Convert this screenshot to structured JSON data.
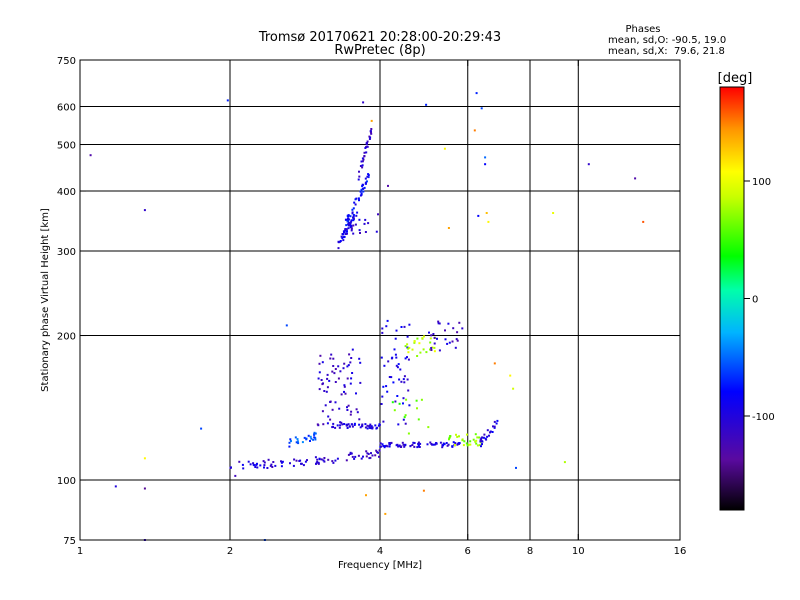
{
  "chart_data": {
    "type": "scatter",
    "title": "Tromsø 20170621 20:28:00-20:29:43",
    "subtitle": "RwPretec (8p)",
    "xlabel": "Frequency [MHz]",
    "ylabel": "Stationary phase Virtual Height [km]",
    "x_scale": "log",
    "y_scale": "log",
    "xlim": [
      1,
      16
    ],
    "ylim": [
      75,
      750
    ],
    "x_ticks": [
      {
        "value": 1,
        "label": "1"
      },
      {
        "value": 2,
        "label": "2"
      },
      {
        "value": 4,
        "label": "4"
      },
      {
        "value": 6,
        "label": "6"
      },
      {
        "value": 8,
        "label": "8"
      },
      {
        "value": 10,
        "label": "10"
      },
      {
        "value": 16,
        "label": "16"
      }
    ],
    "x_grid": [
      2,
      4,
      6,
      8,
      10
    ],
    "y_ticks": [
      {
        "value": 75,
        "label": "75"
      },
      {
        "value": 100,
        "label": "100"
      },
      {
        "value": 200,
        "label": "200"
      },
      {
        "value": 300,
        "label": "300"
      },
      {
        "value": 400,
        "label": "400"
      },
      {
        "value": 500,
        "label": "500"
      },
      {
        "value": 600,
        "label": "600"
      },
      {
        "value": 750,
        "label": "750"
      }
    ],
    "y_grid": [
      100,
      200,
      300,
      400,
      500,
      600
    ],
    "grid": true,
    "stats": {
      "heading": "Phases",
      "line_o": "mean, sd,O: -90.5, 19.0",
      "line_x": "mean, sd,X:  79.6, 21.8"
    },
    "colorbar": {
      "label": "[deg]",
      "range": [
        -180,
        180
      ],
      "ticks": [
        {
          "value": 100,
          "label": "100"
        },
        {
          "value": 0,
          "label": "0"
        },
        {
          "value": -100,
          "label": "-100"
        }
      ]
    },
    "clusters": [
      {
        "x_range": [
          2.0,
          3.3
        ],
        "y_range": [
          107,
          110
        ],
        "phase": -105,
        "count": 60,
        "trend": "rising"
      },
      {
        "x_range": [
          3.3,
          4.0
        ],
        "y_range": [
          111,
          114
        ],
        "phase": -115,
        "count": 25,
        "trend": "rising"
      },
      {
        "x_range": [
          4.0,
          5.8
        ],
        "y_range": [
          117,
          120
        ],
        "phase": -100,
        "count": 70,
        "trend": "flat"
      },
      {
        "x_range": [
          3.2,
          4.0
        ],
        "y_range": [
          128,
          131
        ],
        "phase": -100,
        "count": 45,
        "trend": "flat"
      },
      {
        "x_range": [
          2.6,
          3.0
        ],
        "y_range": [
          119,
          124
        ],
        "phase": -60,
        "count": 25,
        "trend": "rising"
      },
      {
        "x_range": [
          3.0,
          3.7
        ],
        "y_range": [
          130,
          190
        ],
        "phase": -110,
        "count": 70,
        "trend": "scatter"
      },
      {
        "x_range": [
          4.0,
          4.6
        ],
        "y_range": [
          130,
          215
        ],
        "phase": -95,
        "count": 50,
        "trend": "scatter"
      },
      {
        "x_range": [
          4.5,
          5.2
        ],
        "y_range": [
          180,
          200
        ],
        "phase": 85,
        "count": 25,
        "trend": "scatter"
      },
      {
        "x_range": [
          5.0,
          5.9
        ],
        "y_range": [
          185,
          215
        ],
        "phase": -110,
        "count": 25,
        "trend": "scatter"
      },
      {
        "x_range": [
          5.5,
          6.4
        ],
        "y_range": [
          118,
          125
        ],
        "phase": 75,
        "count": 30,
        "trend": "scatter"
      },
      {
        "x_range": [
          6.3,
          6.9
        ],
        "y_range": [
          118,
          132
        ],
        "phase": -100,
        "count": 25,
        "trend": "rising"
      },
      {
        "x_range": [
          4.2,
          5.0
        ],
        "y_range": [
          125,
          150
        ],
        "phase": 60,
        "count": 12,
        "trend": "scatter"
      },
      {
        "x_range": [
          3.3,
          3.6
        ],
        "y_range": [
          310,
          360
        ],
        "phase": -95,
        "count": 45,
        "trend": "rising"
      },
      {
        "x_range": [
          3.4,
          3.8
        ],
        "y_range": [
          340,
          430
        ],
        "phase": -80,
        "count": 45,
        "trend": "rising"
      },
      {
        "x_range": [
          3.6,
          3.85
        ],
        "y_range": [
          420,
          540
        ],
        "phase": -110,
        "count": 30,
        "trend": "rising"
      },
      {
        "x_range": [
          3.5,
          4.0
        ],
        "y_range": [
          320,
          360
        ],
        "phase": -105,
        "count": 15,
        "trend": "scatter"
      }
    ],
    "points": [
      [
        1.05,
        475,
        -130
      ],
      [
        1.35,
        365,
        -110
      ],
      [
        1.18,
        97,
        -100
      ],
      [
        1.35,
        96,
        -140
      ],
      [
        1.35,
        75,
        -110
      ],
      [
        1.35,
        111,
        110
      ],
      [
        1.75,
        128,
        -60
      ],
      [
        1.98,
        618,
        -70
      ],
      [
        2.05,
        102,
        -120
      ],
      [
        2.35,
        75,
        -60
      ],
      [
        2.6,
        210,
        -60
      ],
      [
        3.7,
        612,
        -110
      ],
      [
        3.85,
        560,
        140
      ],
      [
        4.15,
        410,
        -130
      ],
      [
        4.1,
        85,
        140
      ],
      [
        3.75,
        93,
        140
      ],
      [
        4.9,
        95,
        150
      ],
      [
        4.95,
        605,
        -70
      ],
      [
        5.4,
        490,
        110
      ],
      [
        5.5,
        335,
        140
      ],
      [
        6.2,
        535,
        150
      ],
      [
        6.25,
        640,
        -70
      ],
      [
        6.4,
        595,
        -60
      ],
      [
        6.5,
        470,
        -50
      ],
      [
        6.5,
        455,
        -80
      ],
      [
        6.3,
        355,
        -80
      ],
      [
        6.55,
        360,
        130
      ],
      [
        6.6,
        345,
        110
      ],
      [
        8.9,
        360,
        100
      ],
      [
        10.5,
        455,
        -110
      ],
      [
        13.0,
        425,
        -130
      ],
      [
        13.5,
        345,
        160
      ],
      [
        7.5,
        106,
        -60
      ],
      [
        9.4,
        109,
        80
      ],
      [
        7.3,
        165,
        110
      ],
      [
        7.4,
        155,
        90
      ],
      [
        6.8,
        175,
        150
      ]
    ]
  }
}
